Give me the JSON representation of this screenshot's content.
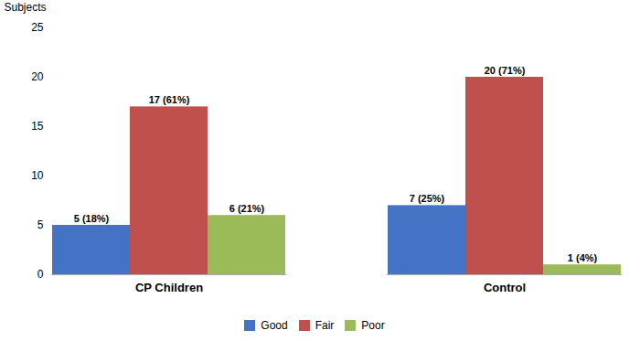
{
  "chart_data": {
    "type": "bar",
    "categories": [
      "CP Children",
      "Control"
    ],
    "series": [
      {
        "name": "Good",
        "color": "#4472C4",
        "values": [
          5,
          7
        ],
        "value_labels": [
          "5 (18%)",
          "7 (25%)"
        ]
      },
      {
        "name": "Fair",
        "color": "#C0504D",
        "values": [
          17,
          20
        ],
        "value_labels": [
          "17 (61%)",
          "20 (71%)"
        ]
      },
      {
        "name": "Poor",
        "color": "#9BBB59",
        "values": [
          6,
          1
        ],
        "value_labels": [
          "6 (21%)",
          "1 (4%)"
        ]
      }
    ],
    "ylabel": "Subjects",
    "ylim": [
      0,
      25
    ],
    "yticks": [
      0,
      5,
      10,
      15,
      20,
      25
    ],
    "grid": false,
    "legend": "bottom",
    "data_labels": true
  }
}
